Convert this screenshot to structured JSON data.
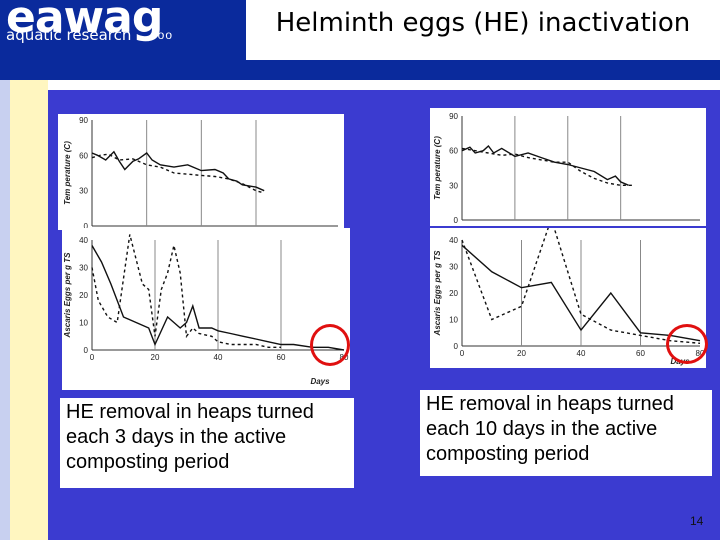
{
  "header": {
    "logo_word": "eawag",
    "logo_sub": "aquatic research",
    "logo_dots": "ooo",
    "title": "Helminth eggs (HE) inactivation"
  },
  "colors": {
    "header_bg": "#0a2a9c",
    "content_bg": "#3b3bd0",
    "highlight": "#e01010"
  },
  "page_number": "14",
  "chart_data": [
    {
      "panel": "left",
      "caption": "HE removal in heaps turned each 3 days in the active composting period",
      "temperature": {
        "type": "line",
        "ylabel": "Tem perature (C)",
        "ylim": [
          0,
          90
        ],
        "yticks": [
          "0",
          "30",
          "60",
          "90"
        ],
        "xlim": [
          0,
          90
        ],
        "series": [
          {
            "style": "solid",
            "x": [
              0,
              2,
              5,
              8,
              10,
              12,
              15,
              17,
              20,
              22,
              25,
              30,
              35,
              40,
              45,
              48,
              50,
              53,
              55,
              60,
              63
            ],
            "y": [
              62,
              60,
              56,
              63,
              55,
              48,
              55,
              57,
              62,
              56,
              52,
              50,
              52,
              47,
              48,
              45,
              40,
              38,
              35,
              33,
              30
            ]
          },
          {
            "style": "dashed",
            "x": [
              0,
              3,
              6,
              10,
              15,
              20,
              25,
              30,
              35,
              40,
              45,
              50,
              55,
              60,
              63
            ],
            "y": [
              58,
              60,
              61,
              56,
              57,
              52,
              50,
              45,
              44,
              43,
              42,
              40,
              36,
              30,
              28
            ]
          }
        ]
      },
      "eggs": {
        "type": "line",
        "ylabel": "Ascaris Eggs per g TS",
        "xlabel": "Days",
        "ylim": [
          0,
          40
        ],
        "yticks": [
          "0",
          "10",
          "20",
          "30",
          "40"
        ],
        "xlim": [
          0,
          80
        ],
        "xticks": [
          "0",
          "20",
          "40",
          "60",
          "80"
        ],
        "series": [
          {
            "style": "solid",
            "x": [
              0,
              3,
              6,
              10,
              14,
              18,
              20,
              24,
              28,
              30,
              32,
              34,
              38,
              40,
              44,
              48,
              52,
              56,
              60,
              64,
              70,
              75,
              80
            ],
            "y": [
              38,
              32,
              24,
              12,
              10,
              8,
              2,
              12,
              8,
              10,
              16,
              8,
              8,
              7,
              6,
              5,
              4,
              3,
              2,
              2,
              1,
              1,
              0
            ]
          },
          {
            "style": "dashed",
            "x": [
              0,
              2,
              5,
              8,
              12,
              16,
              18,
              20,
              22,
              24,
              26,
              28,
              30,
              32,
              34,
              38,
              40,
              44,
              48,
              52,
              56,
              60
            ],
            "y": [
              30,
              18,
              12,
              10,
              42,
              24,
              22,
              5,
              22,
              28,
              38,
              28,
              5,
              8,
              6,
              5,
              3,
              2,
              2,
              2,
              1,
              1
            ]
          }
        ]
      }
    },
    {
      "panel": "right",
      "caption": "HE removal in heaps turned each 10 days in the active composting period",
      "temperature": {
        "type": "line",
        "ylabel": "Tem perature (C)",
        "ylim": [
          0,
          90
        ],
        "yticks": [
          "0",
          "30",
          "60",
          "90"
        ],
        "xlim": [
          0,
          90
        ],
        "series": [
          {
            "style": "solid",
            "x": [
              0,
              3,
              5,
              8,
              10,
              12,
              15,
              20,
              25,
              30,
              35,
              40,
              45,
              50,
              55,
              58,
              60,
              63
            ],
            "y": [
              60,
              63,
              58,
              60,
              64,
              58,
              62,
              55,
              58,
              54,
              50,
              48,
              45,
              42,
              35,
              38,
              33,
              30
            ]
          },
          {
            "style": "dashed",
            "x": [
              0,
              5,
              10,
              15,
              20,
              25,
              30,
              35,
              40,
              45,
              50,
              55,
              60,
              65
            ],
            "y": [
              62,
              60,
              58,
              56,
              57,
              54,
              52,
              50,
              50,
              42,
              36,
              32,
              30,
              30
            ]
          }
        ]
      },
      "eggs": {
        "type": "line",
        "ylabel": "Ascaris Eggs per g TS",
        "xlabel": "Days",
        "ylim": [
          0,
          40
        ],
        "yticks": [
          "0",
          "10",
          "20",
          "30",
          "40"
        ],
        "xlim": [
          0,
          80
        ],
        "xticks": [
          "0",
          "20",
          "40",
          "60",
          "80"
        ],
        "series": [
          {
            "style": "solid",
            "x": [
              0,
              10,
              20,
              30,
              40,
              50,
              60,
              70,
              80
            ],
            "y": [
              38,
              28,
              22,
              24,
              6,
              20,
              5,
              4,
              2
            ]
          },
          {
            "style": "dashed",
            "x": [
              0,
              5,
              10,
              20,
              30,
              40,
              50,
              60,
              70,
              80
            ],
            "y": [
              40,
              25,
              10,
              15,
              48,
              12,
              6,
              4,
              2,
              1
            ]
          }
        ]
      }
    }
  ]
}
